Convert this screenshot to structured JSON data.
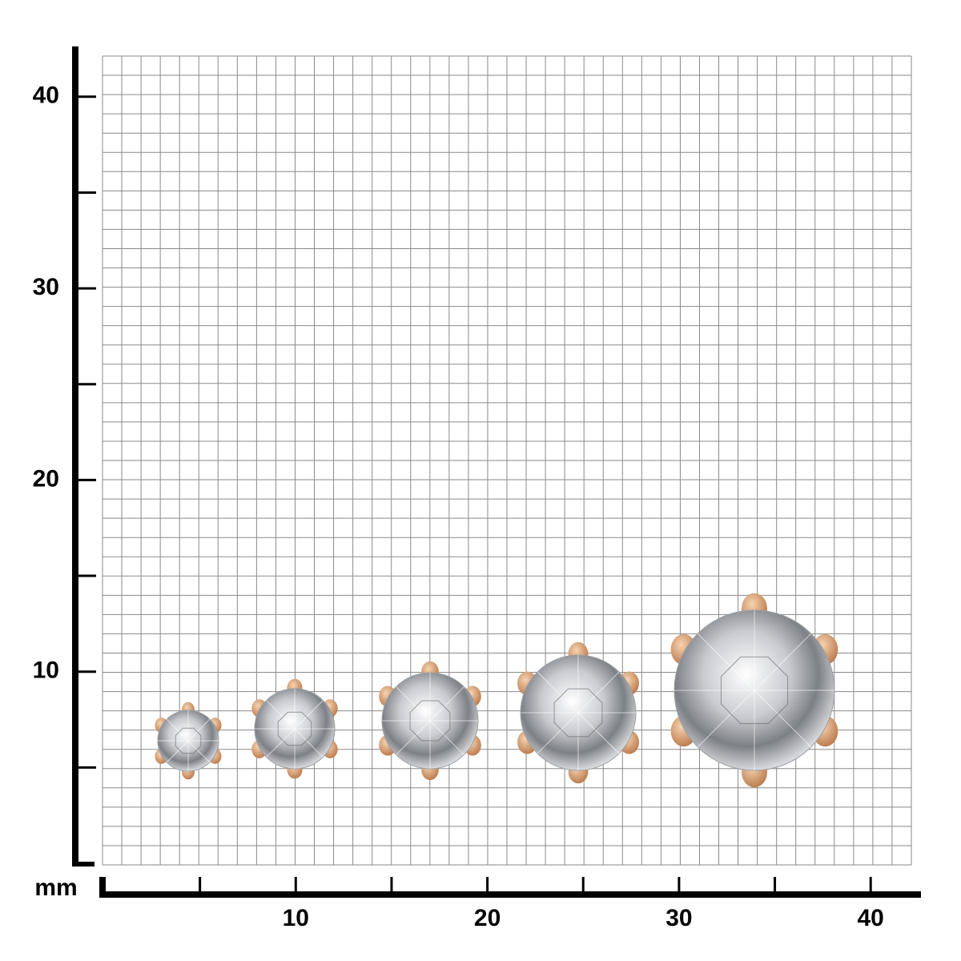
{
  "unit": "mm",
  "x_axis": {
    "labels": [
      10,
      20,
      30,
      40
    ]
  },
  "y_axis": {
    "labels": [
      40,
      30,
      20,
      10
    ]
  }
}
